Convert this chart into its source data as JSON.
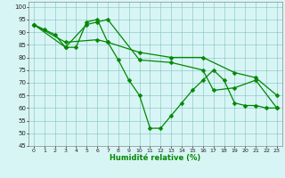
{
  "xlabel": "Humidité relative (%)",
  "background_color": "#d8f5f5",
  "grid_color": "#80c0c0",
  "line_color": "#008800",
  "xlim": [
    -0.5,
    23.5
  ],
  "ylim": [
    45,
    102
  ],
  "xticks": [
    0,
    1,
    2,
    3,
    4,
    5,
    6,
    7,
    8,
    9,
    10,
    11,
    12,
    13,
    14,
    15,
    16,
    17,
    18,
    19,
    20,
    21,
    22,
    23
  ],
  "yticks": [
    45,
    50,
    55,
    60,
    65,
    70,
    75,
    80,
    85,
    90,
    95,
    100
  ],
  "series1_x": [
    0,
    1,
    2,
    3,
    4,
    5,
    6,
    7,
    8,
    9,
    10,
    11,
    12,
    13,
    14,
    15,
    16,
    17,
    18,
    19,
    20,
    21,
    22,
    23
  ],
  "series1_y": [
    93,
    91,
    89,
    84,
    84,
    94,
    95,
    86,
    79,
    71,
    65,
    52,
    52,
    57,
    62,
    67,
    71,
    75,
    71,
    62,
    61,
    61,
    60,
    60
  ],
  "series2_x": [
    0,
    3,
    6,
    7,
    10,
    13,
    16,
    19,
    21,
    23
  ],
  "series2_y": [
    93,
    86,
    87,
    86,
    82,
    80,
    80,
    74,
    72,
    65
  ],
  "series3_x": [
    0,
    3,
    5,
    6,
    7,
    10,
    13,
    16,
    17,
    19,
    21,
    23
  ],
  "series3_y": [
    93,
    84,
    93,
    94,
    95,
    79,
    78,
    75,
    67,
    68,
    71,
    60
  ],
  "markersize": 2.5,
  "linewidth": 0.9
}
